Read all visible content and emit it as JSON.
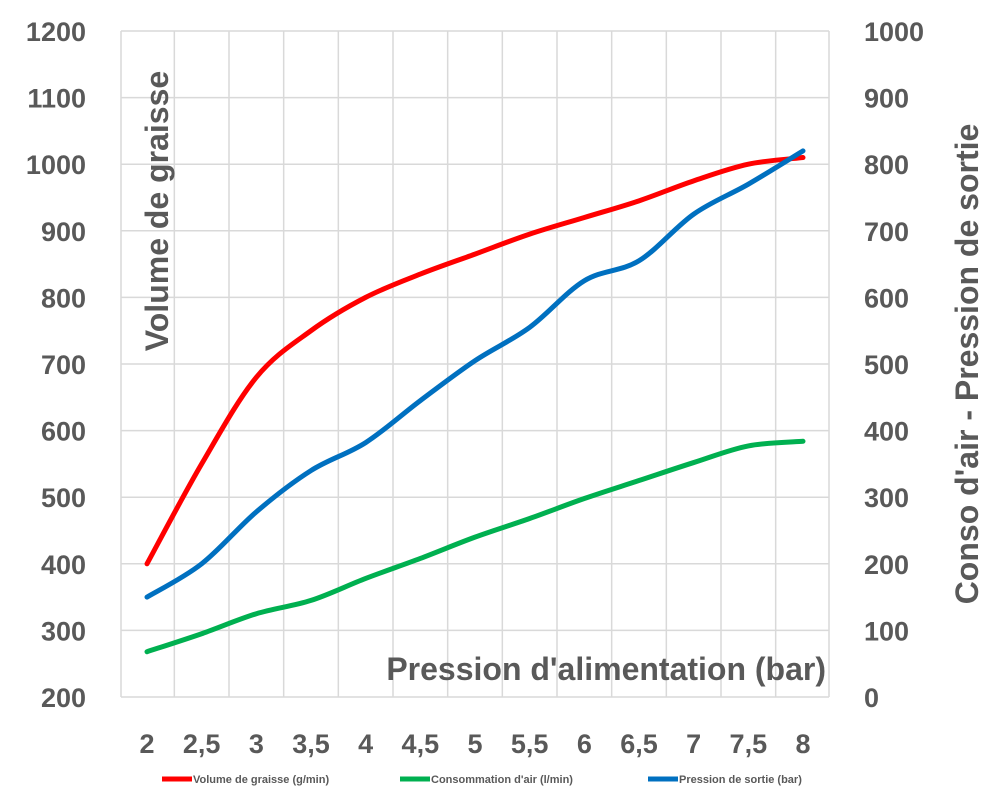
{
  "chart_data": {
    "type": "line",
    "title": "",
    "xlabel": "Pression d'alimentation (bar)",
    "ylabel_left": "Volume de graisse",
    "ylabel_right": "Conso d'air - Pression de sortie",
    "x": [
      2,
      2.5,
      3,
      3.5,
      4,
      4.5,
      5,
      5.5,
      6,
      6.5,
      7,
      7.5,
      8
    ],
    "x_tick_labels": [
      "2",
      "2,5",
      "3",
      "3,5",
      "4",
      "4,5",
      "5",
      "5,5",
      "6",
      "6,5",
      "7",
      "7,5",
      "8"
    ],
    "ylim_left": [
      200,
      1200
    ],
    "y_left_ticks": [
      "200",
      "300",
      "400",
      "500",
      "600",
      "700",
      "800",
      "900",
      "1000",
      "1100",
      "1200"
    ],
    "ylim_right": [
      0,
      1000
    ],
    "y_right_ticks": [
      "0",
      "100",
      "200",
      "300",
      "400",
      "500",
      "600",
      "700",
      "800",
      "900",
      "1000"
    ],
    "grid": true,
    "legend_position": "bottom",
    "series": [
      {
        "name": "Volume de graisse (g/min)",
        "axis": "left",
        "color": "#ff0000",
        "values": [
          400,
          550,
          680,
          750,
          800,
          835,
          865,
          895,
          920,
          945,
          975,
          1000,
          1010
        ]
      },
      {
        "name": "Consommation d'air (l/min)",
        "axis": "right",
        "color": "#00b050",
        "values": [
          68,
          95,
          125,
          145,
          178,
          208,
          240,
          268,
          298,
          325,
          352,
          377,
          384
        ]
      },
      {
        "name": "Pression de sortie (bar)",
        "axis": "right",
        "color": "#0070c0",
        "values": [
          150,
          200,
          278,
          340,
          382,
          445,
          505,
          555,
          625,
          655,
          725,
          770,
          820
        ]
      }
    ]
  }
}
